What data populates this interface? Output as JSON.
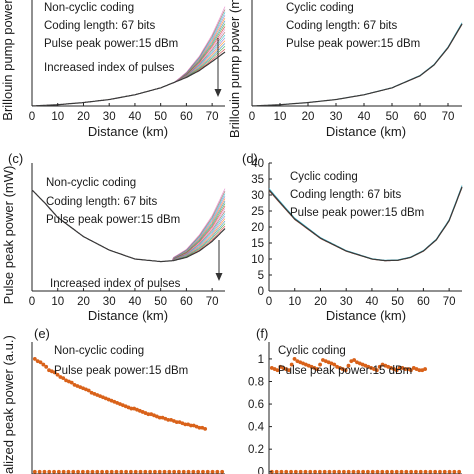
{
  "chart_data": [
    {
      "id": "a",
      "type": "line",
      "panel_label": "",
      "annotations": [
        "Non-cyclic coding",
        "Coding length: 67 bits",
        "Pulse peak power:15 dBm",
        "Increased index of pulses"
      ],
      "xlabel": "Distance (km)",
      "ylabel": "Brillouin pump power",
      "xlim": [
        0,
        75
      ],
      "ylim": [
        0,
        25
      ],
      "xticks": [
        0,
        10,
        20,
        30,
        40,
        50,
        60,
        70
      ],
      "yticks": [],
      "fan": true,
      "curve": {
        "x": [
          0,
          10,
          20,
          30,
          40,
          50,
          60,
          65,
          70,
          75
        ],
        "y": [
          0.0,
          0.3,
          0.8,
          1.5,
          2.6,
          4.2,
          6.6,
          8.2,
          10.3,
          12.5
        ]
      },
      "fan_top": {
        "x": [
          55,
          60,
          65,
          70,
          75
        ],
        "y": [
          5.3,
          7.8,
          11.5,
          16.5,
          23.0
        ]
      }
    },
    {
      "id": "b",
      "type": "line",
      "panel_label": "",
      "annotations": [
        "Cyclic coding",
        "Coding length: 67 bits",
        "Pulse peak power:15 dBm"
      ],
      "xlabel": "Distance (km)",
      "ylabel": "Brillouin pump power (m",
      "xlim": [
        0,
        75
      ],
      "ylim": [
        0,
        25
      ],
      "xticks": [
        0,
        10,
        20,
        30,
        40,
        50,
        60,
        70
      ],
      "yticks": [],
      "fan": false,
      "curve": {
        "x": [
          0,
          10,
          20,
          30,
          40,
          50,
          60,
          65,
          70,
          75
        ],
        "y": [
          0.0,
          0.3,
          0.8,
          1.5,
          2.6,
          4.2,
          7.0,
          9.5,
          13.5,
          19.0
        ]
      }
    },
    {
      "id": "c",
      "type": "line",
      "panel_label": "(c)",
      "annotations": [
        "Non-cyclic coding",
        "Coding length: 67 bits",
        "Pulse peak power:15 dBm",
        "Increased index of pulses"
      ],
      "xlabel": "Distance (km)",
      "ylabel": "Pulse peak power (mW)",
      "xlim": [
        0,
        75
      ],
      "ylim": [
        0,
        40
      ],
      "xticks": [
        0,
        10,
        20,
        30,
        40,
        50,
        60,
        70
      ],
      "yticks": [],
      "fan": true,
      "curve": {
        "x": [
          0,
          5,
          10,
          20,
          30,
          40,
          50,
          55,
          60,
          65,
          70,
          75
        ],
        "y": [
          31.6,
          27.5,
          23.0,
          17.0,
          12.8,
          10.0,
          9.2,
          9.5,
          10.5,
          12.5,
          15.5,
          19.5
        ]
      },
      "fan_top": {
        "x": [
          55,
          60,
          65,
          70,
          75
        ],
        "y": [
          10.5,
          13.0,
          17.5,
          23.5,
          32.0
        ]
      }
    },
    {
      "id": "d",
      "type": "line",
      "panel_label": "(d)",
      "annotations": [
        "Cyclic coding",
        "Coding length: 67 bits",
        "Pulse peak power:15 dBm"
      ],
      "xlabel": "Distance (km)",
      "ylabel": "",
      "xlim": [
        0,
        75
      ],
      "ylim": [
        0,
        40
      ],
      "xticks": [
        0,
        10,
        20,
        30,
        40,
        50,
        60,
        70
      ],
      "yticks": [
        0,
        5,
        10,
        15,
        20,
        25,
        30,
        35,
        40
      ],
      "fan": false,
      "curve": {
        "x": [
          0,
          5,
          10,
          20,
          30,
          40,
          45,
          50,
          55,
          60,
          65,
          70,
          75
        ],
        "y": [
          31.6,
          27.0,
          22.5,
          16.5,
          12.5,
          10.0,
          9.5,
          9.6,
          10.5,
          12.5,
          16.0,
          22.0,
          32.5
        ]
      }
    },
    {
      "id": "e",
      "type": "scatter",
      "panel_label": "(e)",
      "annotations": [
        "Non-cyclic coding",
        "Pulse peak power:15 dBm"
      ],
      "xlabel": "",
      "ylabel": "malized peak power (a.u.)",
      "xlim": [
        0,
        68
      ],
      "ylim": [
        -0.02,
        1.15
      ],
      "xticks": [],
      "yticks": [],
      "series": [
        {
          "values": [
            1.0,
            0.98,
            0.97,
            0.95,
            0.93,
            0.9,
            0.89,
            0.88,
            0.86,
            0.84,
            0.83,
            0.81,
            0.8,
            0.79,
            0.77,
            0.76,
            0.75,
            0.74,
            0.73,
            0.72,
            0.7,
            0.69,
            0.68,
            0.67,
            0.66,
            0.65,
            0.64,
            0.63,
            0.62,
            0.61,
            0.6,
            0.59,
            0.58,
            0.57,
            0.56,
            0.56,
            0.55,
            0.54,
            0.53,
            0.52,
            0.51,
            0.51,
            0.5,
            0.49,
            0.48,
            0.48,
            0.47,
            0.46,
            0.46,
            0.45,
            0.44,
            0.44,
            0.43,
            0.42,
            0.42,
            0.41,
            0.41,
            0.4,
            0.39,
            0.39,
            0.38
          ]
        },
        {
          "constant": 0,
          "count": 40
        }
      ]
    },
    {
      "id": "f",
      "type": "scatter",
      "panel_label": "(f)",
      "annotations": [
        "Cyclic coding",
        "Pulse peak power:15 dBm"
      ],
      "xlabel": "",
      "ylabel": "",
      "xlim": [
        0,
        68
      ],
      "ylim": [
        -0.02,
        1.15
      ],
      "xticks": [],
      "yticks": [
        0,
        0.2,
        0.4,
        0.6,
        0.8,
        1
      ],
      "series": [
        {
          "values": [
            0.92,
            0.91,
            0.9,
            0.93,
            0.92,
            0.91,
            0.9,
            0.95,
            1.0,
            0.98,
            0.97,
            0.96,
            0.95,
            0.94,
            0.93,
            0.92,
            0.91,
            0.95,
            0.99,
            0.98,
            0.97,
            0.96,
            0.95,
            0.93,
            0.92,
            0.91,
            0.9,
            0.94,
            0.98,
            0.99,
            0.97,
            0.96,
            0.95,
            0.94,
            0.93,
            0.92,
            0.91,
            0.9,
            0.93,
            0.95,
            0.94,
            0.93,
            0.92,
            0.91,
            0.9,
            0.92,
            0.92,
            0.91,
            0.91,
            0.9,
            0.92,
            0.91,
            0.9,
            0.9,
            0.91
          ]
        },
        {
          "constant": 0,
          "count": 40
        }
      ]
    }
  ],
  "colors": {
    "markers": "#d9621a",
    "curve": "#3a3a3a",
    "fan": [
      "#d62728",
      "#2ca02c",
      "#1f77b4",
      "#ff7f0e",
      "#9467bd",
      "#17becf",
      "#8c564b",
      "#e377c2"
    ]
  }
}
